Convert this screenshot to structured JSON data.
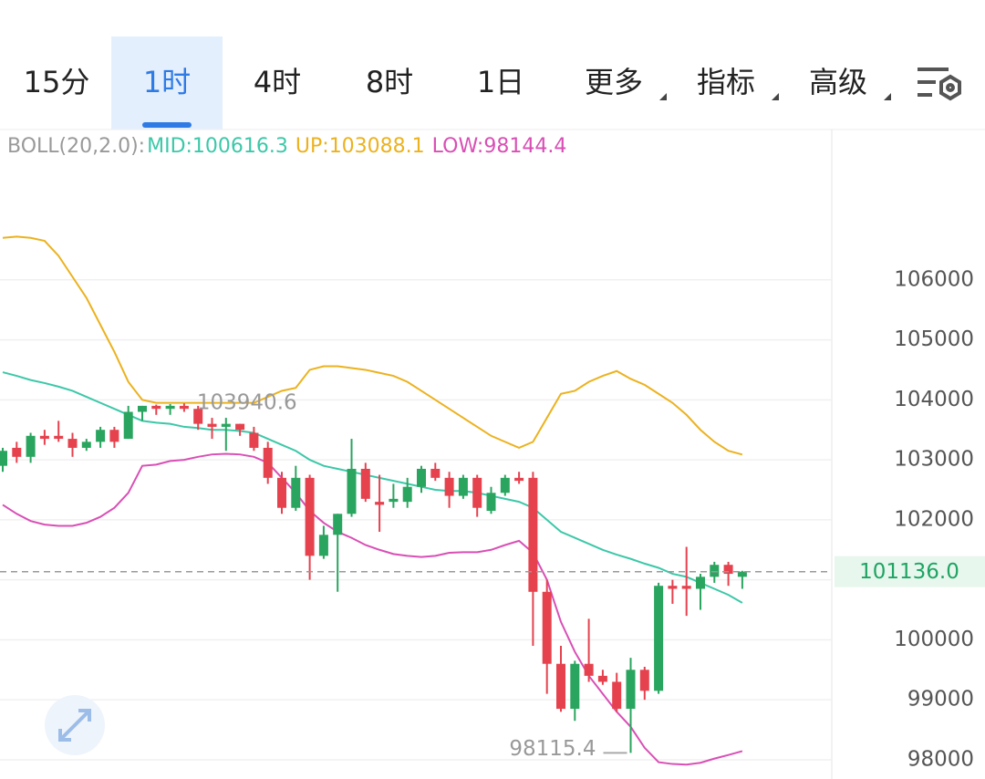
{
  "tabs": [
    "15分",
    "1时",
    "4时",
    "8时",
    "1日",
    "更多",
    "指标",
    "高级"
  ],
  "active_tab": 1,
  "dropdown_tabs": [
    5,
    6,
    7
  ],
  "chart_data": {
    "type": "candlestick",
    "indicator": "BOLL(20,2.0):",
    "up_color": "#2aa55f",
    "down_color": "#e5424e",
    "open": [
      102900,
      103200,
      103050,
      103400,
      103400,
      103350,
      103200,
      103300,
      103500,
      103350,
      103800,
      103900,
      103850,
      103900,
      103850,
      103600,
      103550,
      103600,
      103450,
      103200,
      102700,
      102200,
      102700,
      101400,
      101750,
      102100,
      102850,
      102300,
      102300,
      102300,
      102550,
      102850,
      102700,
      102400,
      102700,
      102150,
      102450,
      102700,
      102700,
      100800,
      99600,
      98850,
      99600,
      99400,
      99300,
      98850,
      99500,
      99150,
      100900,
      100900,
      100850,
      101050,
      101250,
      101050
    ],
    "high": [
      103200,
      103300,
      103450,
      103500,
      103650,
      103450,
      103350,
      103550,
      103550,
      103900,
      103900,
      103920,
      103930,
      103940.6,
      103900,
      103700,
      103700,
      103600,
      103550,
      103300,
      102800,
      102900,
      102750,
      101900,
      102100,
      103350,
      102950,
      102750,
      102600,
      102700,
      102900,
      102950,
      102800,
      102750,
      102750,
      102550,
      102750,
      102800,
      102800,
      101000,
      99900,
      99650,
      100350,
      99500,
      99450,
      99700,
      99550,
      100950,
      101000,
      101550,
      101100,
      101300,
      101300,
      101150
    ],
    "low": [
      102800,
      102950,
      102950,
      103250,
      103300,
      103050,
      103150,
      103200,
      103200,
      103350,
      103650,
      103750,
      103750,
      103800,
      103500,
      103350,
      103150,
      103400,
      103150,
      102600,
      102100,
      102150,
      101000,
      101350,
      100800,
      102050,
      102300,
      101800,
      102200,
      102200,
      102450,
      102650,
      102200,
      102350,
      102050,
      102100,
      102400,
      102600,
      99900,
      99100,
      98800,
      98650,
      99300,
      99250,
      98800,
      98115.4,
      99000,
      99100,
      100600,
      100400,
      100500,
      100950,
      100900,
      100850
    ],
    "close": [
      103150,
      103050,
      103400,
      103350,
      103350,
      103200,
      103300,
      103500,
      103300,
      103800,
      103900,
      103850,
      103900,
      103850,
      103600,
      103550,
      103600,
      103500,
      103200,
      102700,
      102200,
      102700,
      101400,
      101750,
      102100,
      102850,
      102350,
      102250,
      102350,
      102550,
      102850,
      102700,
      102400,
      102700,
      102200,
      102450,
      102700,
      102650,
      100800,
      99600,
      98850,
      99600,
      99400,
      99300,
      98850,
      99500,
      99150,
      100900,
      100850,
      100850,
      101050,
      101250,
      101100,
      101136
    ],
    "series": [
      {
        "name": "MID:",
        "color": "#3cc8a8",
        "values": [
          104460,
          104400,
          104330,
          104280,
          104220,
          104150,
          104050,
          103950,
          103850,
          103750,
          103650,
          103620,
          103600,
          103550,
          103530,
          103500,
          103500,
          103480,
          103450,
          103350,
          103250,
          103150,
          103000,
          102900,
          102850,
          102800,
          102750,
          102700,
          102650,
          102600,
          102550,
          102500,
          102480,
          102480,
          102450,
          102400,
          102350,
          102300,
          102200,
          102000,
          101800,
          101700,
          101600,
          101500,
          101420,
          101350,
          101270,
          101200,
          101100,
          101050,
          100950,
          100850,
          100750,
          100616.3
        ]
      },
      {
        "name": "UP:",
        "color": "#ecb21e",
        "values": [
          106700,
          106720,
          106700,
          106650,
          106400,
          106050,
          105700,
          105250,
          104800,
          104300,
          104000,
          103950,
          103950,
          103950,
          103950,
          103950,
          103950,
          103950,
          103950,
          104050,
          104150,
          104200,
          104500,
          104560,
          104560,
          104530,
          104500,
          104450,
          104400,
          104300,
          104150,
          104000,
          103850,
          103700,
          103550,
          103400,
          103300,
          103200,
          103300,
          103700,
          104100,
          104150,
          104300,
          104400,
          104480,
          104350,
          104250,
          104100,
          103950,
          103750,
          103500,
          103300,
          103150,
          103088.1
        ]
      },
      {
        "name": "LOW:",
        "color": "#d94fb5",
        "values": [
          102250,
          102100,
          101980,
          101920,
          101900,
          101900,
          101950,
          102050,
          102200,
          102450,
          102900,
          102920,
          102980,
          103000,
          103050,
          103090,
          103100,
          103090,
          103050,
          102950,
          102700,
          102450,
          102150,
          101950,
          101800,
          101700,
          101580,
          101500,
          101430,
          101400,
          101380,
          101400,
          101450,
          101460,
          101460,
          101500,
          101580,
          101650,
          101450,
          101000,
          100300,
          99800,
          99400,
          99100,
          98800,
          98550,
          98200,
          97960,
          97930,
          97920,
          97950,
          98020,
          98080,
          98144.4
        ]
      }
    ],
    "max_label": 103940.6,
    "min_label": 98115.4,
    "last_price": {
      "value": 101136,
      "label": "101136.0"
    },
    "last_price_color": "#1fa463",
    "ylim": [
      97680,
      108460
    ],
    "yticks": [
      98000,
      99000,
      100000,
      101000,
      102000,
      103000,
      104000,
      105000,
      106000
    ],
    "grid": true
  }
}
